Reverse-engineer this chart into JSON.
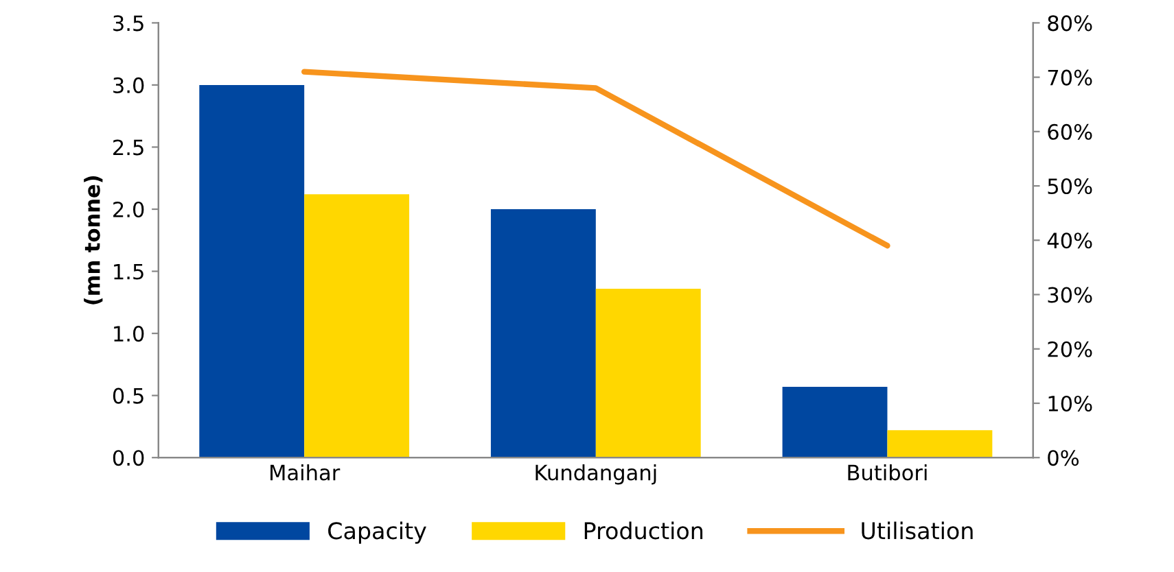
{
  "chart_data": {
    "type": "bar",
    "ylabel": "(mn tonne)",
    "categories": [
      "Maihar",
      "Kundanganj",
      "Butibori"
    ],
    "series": [
      {
        "name": "Capacity",
        "color": "#0047a0",
        "values": [
          3.0,
          2.0,
          0.57
        ]
      },
      {
        "name": "Production",
        "color": "#ffd700",
        "values": [
          2.12,
          1.36,
          0.22
        ]
      },
      {
        "name": "Utilisation",
        "color": "#f7941d",
        "type": "line",
        "axis": "y2",
        "values": [
          71,
          68,
          39
        ]
      }
    ],
    "ylim": [
      0,
      3.5
    ],
    "yticks": [
      {
        "value": 0,
        "label": "0.0"
      },
      {
        "value": 0.5,
        "label": "0.5"
      },
      {
        "value": 1,
        "label": "1.0"
      },
      {
        "value": 1.5,
        "label": "1.5"
      },
      {
        "value": 2,
        "label": "2.0"
      },
      {
        "value": 2.5,
        "label": "2.5"
      },
      {
        "value": 3,
        "label": "3.0"
      },
      {
        "value": 3.5,
        "label": "3.5"
      }
    ],
    "y2lim": [
      0,
      80
    ],
    "y2ticks": [
      {
        "value": 0,
        "label": "0%"
      },
      {
        "value": 10,
        "label": "10%"
      },
      {
        "value": 20,
        "label": "20%"
      },
      {
        "value": 30,
        "label": "30%"
      },
      {
        "value": 40,
        "label": "40%"
      },
      {
        "value": 50,
        "label": "50%"
      },
      {
        "value": 60,
        "label": "60%"
      },
      {
        "value": 70,
        "label": "70%"
      },
      {
        "value": 80,
        "label": "80%"
      }
    ],
    "grid": false,
    "legend": "bottom"
  }
}
